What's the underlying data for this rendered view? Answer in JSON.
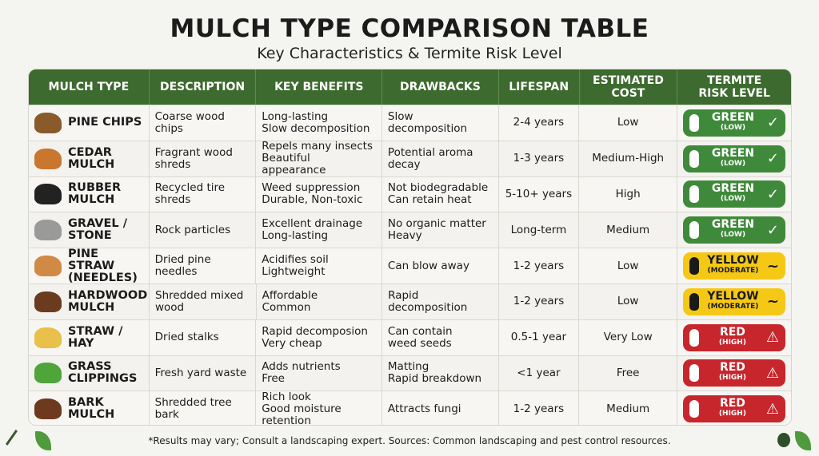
{
  "title": "MULCH TYPE COMPARISON TABLE",
  "subtitle": "Key Characteristics & Termite Risk Level",
  "headers": [
    "MULCH TYPE",
    "DESCRIPTION",
    "KEY BENEFITS",
    "DRAWBACKS",
    "LIFESPAN",
    "ESTIMATED\nCOST",
    "TERMITE\nRISK LEVEL"
  ],
  "risk_colors": {
    "green": "#3f8a3a",
    "yellow": "#f5c816",
    "red": "#c7262c"
  },
  "rows": [
    {
      "type": "PINE CHIPS",
      "icon": "pine-cone-icon",
      "color": "#8a5a2b",
      "description": "Coarse wood\nchips",
      "benefits": "Long-lasting\nSlow decomposition",
      "drawbacks": "Slow decomposition",
      "lifespan": "2-4 years",
      "cost": "Low",
      "risk": "GREEN",
      "risk_sub": "(LOW)",
      "level": "green"
    },
    {
      "type": "CEDAR\nMULCH",
      "icon": "cedar-mulch-icon",
      "color": "#c9772e",
      "description": "Fragrant wood\nshreds",
      "benefits": "Repels many insects\nBeautiful appearance",
      "drawbacks": "Potential aroma\ndecay",
      "lifespan": "1-3 years",
      "cost": "Medium-High",
      "risk": "GREEN",
      "risk_sub": "(LOW)",
      "level": "green"
    },
    {
      "type": "RUBBER\nMULCH",
      "icon": "rubber-mulch-icon",
      "color": "#222222",
      "description": "Recycled tire\nshreds",
      "benefits": "Weed suppression\nDurable, Non-toxic",
      "drawbacks": "Not biodegradable\nCan retain heat",
      "lifespan": "5-10+ years",
      "cost": "High",
      "risk": "GREEN",
      "risk_sub": "(LOW)",
      "level": "green"
    },
    {
      "type": "GRAVEL /\nSTONE",
      "icon": "gravel-icon",
      "color": "#9a9a98",
      "description": "Rock particles",
      "benefits": "Excellent drainage\nLong-lasting",
      "drawbacks": "No organic matter\nHeavy",
      "lifespan": "Long-term",
      "cost": "Medium",
      "risk": "GREEN",
      "risk_sub": "(LOW)",
      "level": "green"
    },
    {
      "type": "PINE STRAW\n(NEEDLES)",
      "icon": "pine-straw-icon",
      "color": "#d08a45",
      "description": "Dried pine\nneedles",
      "benefits": "Acidifies soil\nLightweight",
      "drawbacks": "Can blow away",
      "lifespan": "1-2 years",
      "cost": "Low",
      "risk": "YELLOW",
      "risk_sub": "(MODERATE)",
      "level": "yellow"
    },
    {
      "type": "HARDWOOD\nMULCH",
      "icon": "hardwood-mulch-icon",
      "color": "#6b3b1f",
      "description": "Shredded mixed\nwood",
      "benefits": "Affordable\nCommon",
      "drawbacks": "Rapid\ndecomposition",
      "lifespan": "1-2 years",
      "cost": "Low",
      "risk": "YELLOW",
      "risk_sub": "(MODERATE)",
      "level": "yellow"
    },
    {
      "type": "STRAW /\nHAY",
      "icon": "hay-bale-icon",
      "color": "#e8c04a",
      "description": "Dried stalks",
      "benefits": "Rapid decomposion\nVery cheap",
      "drawbacks": "Can contain\nweed seeds",
      "lifespan": "0.5-1 year",
      "cost": "Very Low",
      "risk": "RED",
      "risk_sub": "(HIGH)",
      "level": "red"
    },
    {
      "type": "GRASS\nCLIPPINGS",
      "icon": "grass-icon",
      "color": "#4fa43a",
      "description": "Fresh yard waste",
      "benefits": "Adds nutrients\nFree",
      "drawbacks": "Matting\nRapid breakdown",
      "lifespan": "<1 year",
      "cost": "Free",
      "risk": "RED",
      "risk_sub": "(HIGH)",
      "level": "red"
    },
    {
      "type": "BARK MULCH",
      "icon": "bark-mulch-icon",
      "color": "#6e3a1e",
      "description": "Shredded tree\nbark",
      "benefits": "Rich look\nGood moisture\nretention",
      "drawbacks": "Attracts fungi",
      "lifespan": "1-2 years",
      "cost": "Medium",
      "risk": "RED",
      "risk_sub": "(HIGH)",
      "level": "red"
    }
  ],
  "footer": "*Results may vary; Consult a landscaping expert. Sources: Common landscaping and pest control resources."
}
